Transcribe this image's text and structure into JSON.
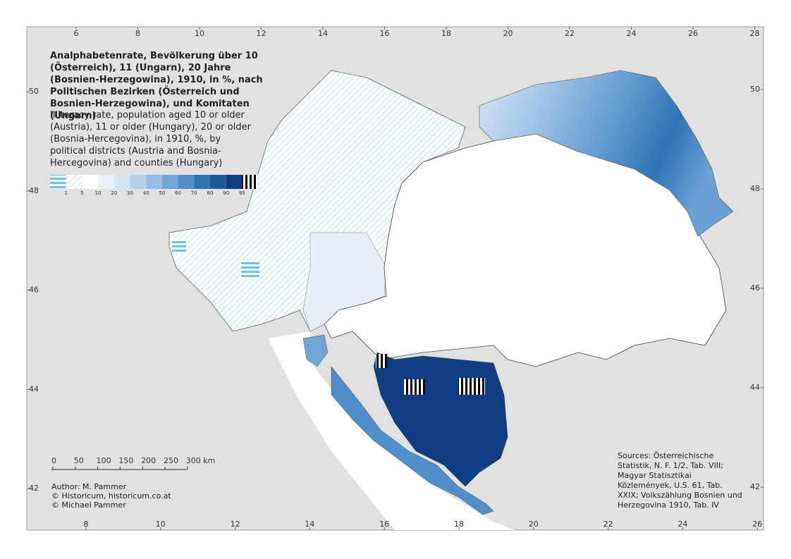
{
  "map": {
    "title": "Analphabetenrate, Bevölkerung über 10 (Österreich), 11 (Ungarn), 20 Jahre (Bosnien-Herzegowina), 1910, in %, nach Politischen Bezirken (Österreich und Bosnien-Herzegowina), und Komitaten (Ungarn)",
    "subtitle": "Illiteracy rate, population aged 10 or older (Austria), 11 or older (Hungary), 20 or older (Bosnia-Hercegovina), in 1910, %, by political districts (Austria and Bosnia-Hercegovina) and counties (Hungary)",
    "legend": {
      "labels": [
        1,
        5,
        10,
        20,
        30,
        40,
        50,
        60,
        70,
        80,
        90,
        95
      ]
    },
    "scale_bar": {
      "labels": [
        "0",
        "50",
        "100",
        "150",
        "200",
        "250",
        "300 km"
      ]
    },
    "credits": [
      "Author: M. Pammer",
      "© Historicum, historicum.co.at",
      "© Michael Pammer"
    ],
    "sources": "Sources: Österreichische Statistik, N. F. 1/2, Tab. VIII; Magyar Statisztikai Közlemények, U.S. 61, Tab. XXIX; Volkszählung Bosnien und Herzegovina 1910, Tab. IV",
    "ticks": {
      "top": [
        6,
        8,
        10,
        12,
        14,
        16,
        18,
        20,
        22,
        24,
        26,
        28
      ],
      "bottom": [
        8,
        10,
        12,
        14,
        16,
        18,
        20,
        22,
        24,
        26
      ],
      "left": [
        50,
        48,
        46,
        44,
        42
      ],
      "right": [
        50,
        48,
        46,
        44,
        42
      ]
    }
  }
}
